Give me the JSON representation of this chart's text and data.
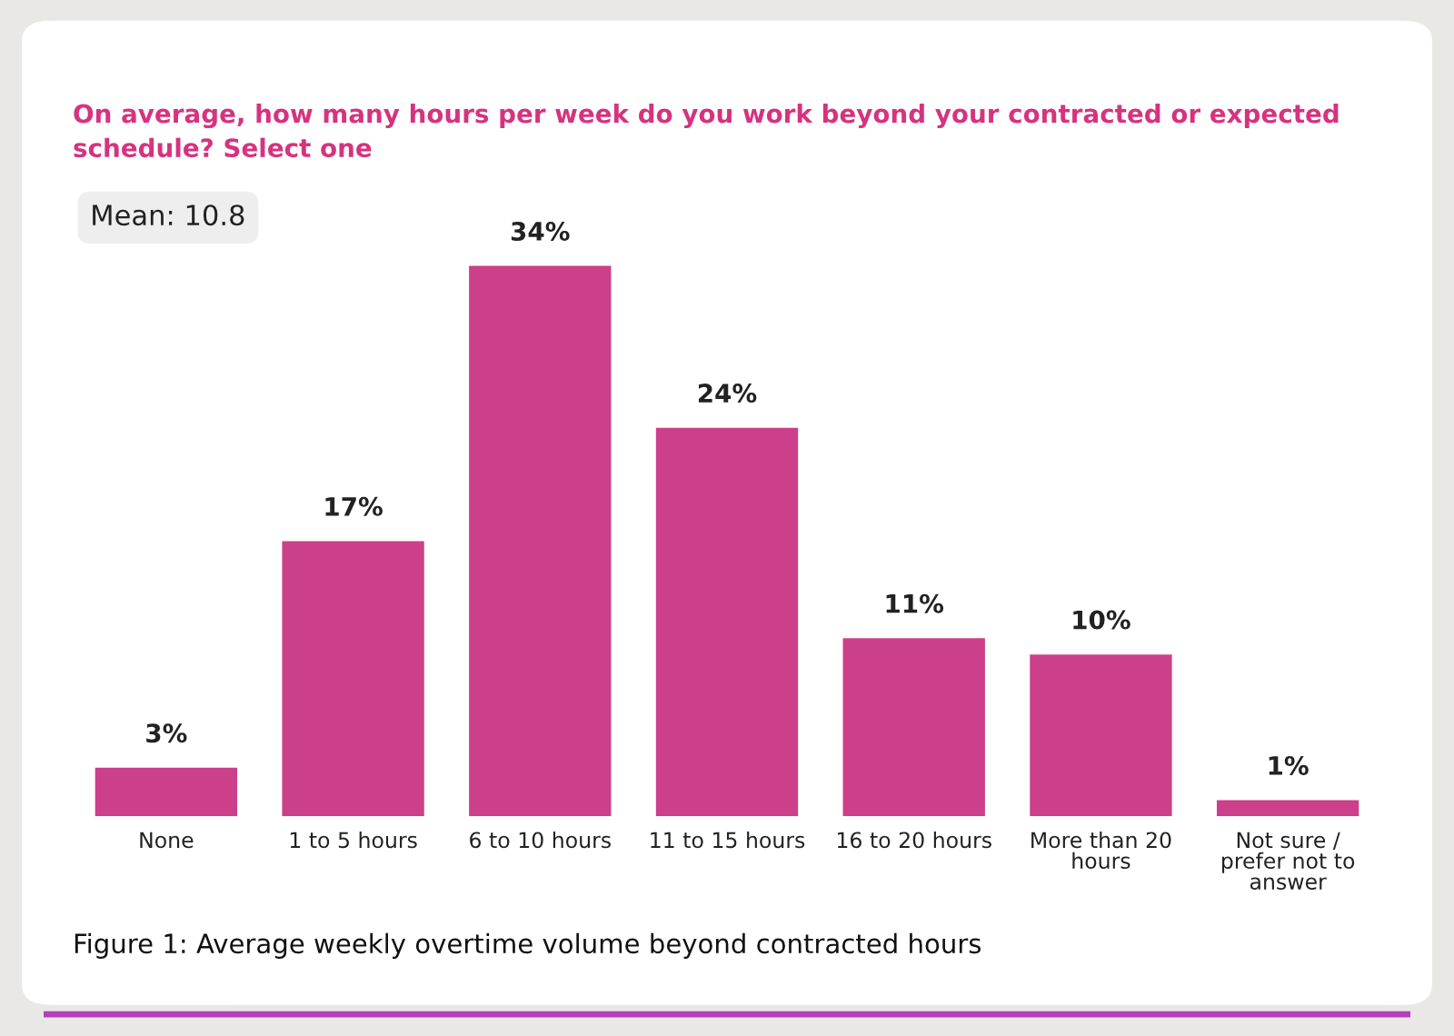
{
  "chart_data": {
    "type": "bar",
    "title": "On average, how many hours per week do you work beyond your contracted or expected\nschedule? Select one",
    "categories": [
      "None",
      "1 to 5 hours",
      "6 to 10 hours",
      "11 to 15 hours",
      "16 to 20 hours",
      "More than 20\nhours",
      "Not sure /\nprefer not to\nanswer"
    ],
    "values": [
      3,
      17,
      34,
      24,
      11,
      10,
      1
    ],
    "value_labels": [
      "3%",
      "17%",
      "34%",
      "24%",
      "11%",
      "10%",
      "1%"
    ],
    "color": "#cc3f8a",
    "annotations": [
      "Mean: 10.8",
      "Figure 1: Average weekly overtime volume beyond contracted hours"
    ],
    "data_labels": false
  }
}
